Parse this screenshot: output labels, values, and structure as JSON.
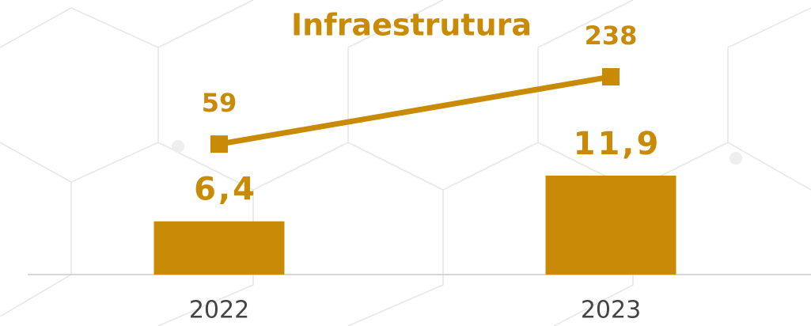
{
  "chart_data": {
    "type": "bar-line",
    "title": "Infraestrutura",
    "categories": [
      "2022",
      "2023"
    ],
    "series": [
      {
        "type": "bar",
        "color": "#c98b06",
        "values": [
          6.4,
          11.9
        ],
        "value_labels": [
          "6,4",
          "11,9"
        ]
      },
      {
        "type": "line",
        "axis": "y2",
        "color": "#c98b06",
        "values": [
          59,
          238
        ]
      }
    ],
    "ylim": [
      0,
      27.3
    ],
    "y2lim": [
      -288,
      316
    ]
  }
}
